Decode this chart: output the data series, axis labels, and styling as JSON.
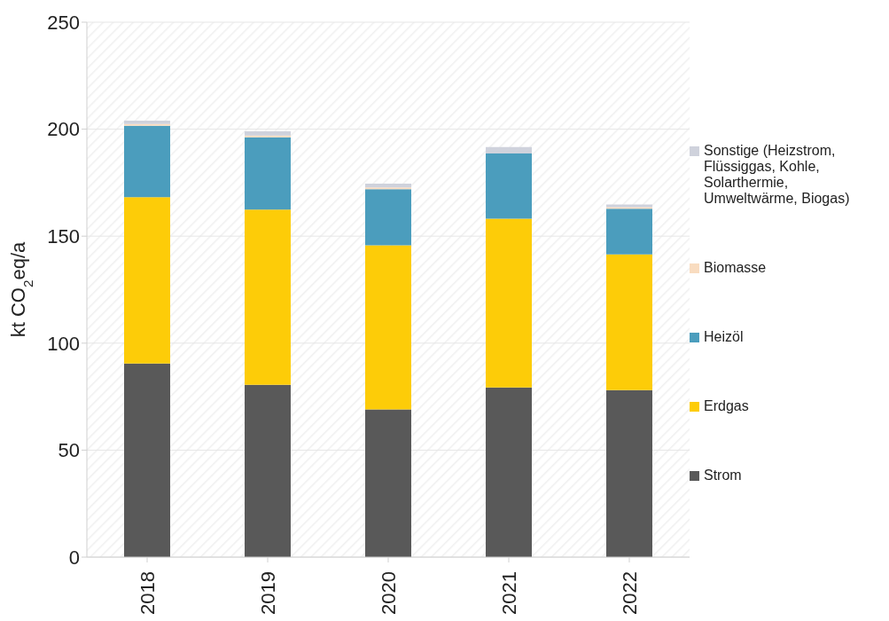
{
  "chart_data": {
    "type": "bar",
    "stacked": true,
    "ylabel": "kt CO$_{2}$eq/a",
    "categories": [
      "2018",
      "2019",
      "2020",
      "2021",
      "2022"
    ],
    "series": [
      {
        "name": "Strom",
        "color": "#595959",
        "values": [
          90.5,
          80.5,
          69,
          79.3,
          78
        ]
      },
      {
        "name": "Erdgas",
        "color": "#fdcc08",
        "values": [
          77.7,
          81.9,
          76.7,
          78.9,
          63.5
        ]
      },
      {
        "name": "Heizöl",
        "color": "#4b9dbd",
        "values": [
          33.4,
          33.8,
          26.3,
          30.4,
          21.3
        ]
      },
      {
        "name": "Biomasse",
        "color": "#f9dcc0",
        "values": [
          0.8,
          0.8,
          0.8,
          null,
          0.8
        ]
      },
      {
        "name": "Sonstige (Heizstrom, Flüssiggas, Kohle, Solarthermie, Umweltwärme, Biogas)",
        "color": "#cfd2dc",
        "values": [
          1.6,
          2.0,
          1.7,
          3.0,
          1.2
        ]
      }
    ],
    "ylim": [
      0,
      250
    ],
    "yticks": [
      0,
      50,
      100,
      150,
      200,
      250
    ],
    "grid": "y",
    "legend": "right"
  }
}
